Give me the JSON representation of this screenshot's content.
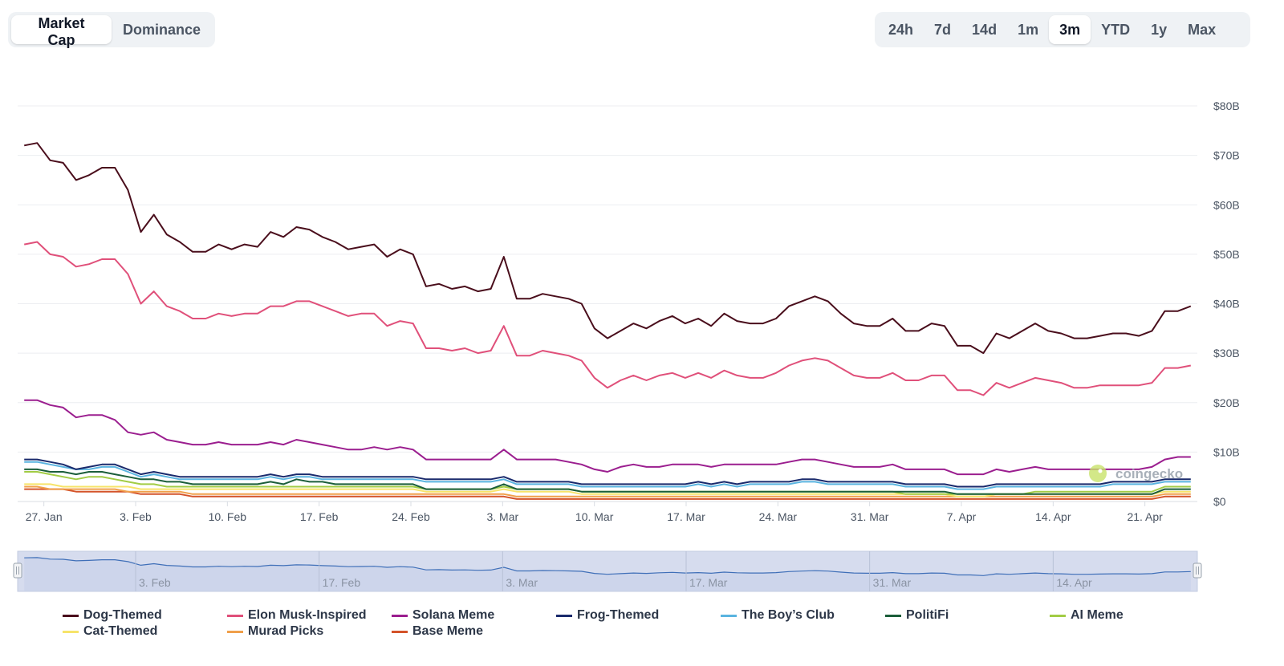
{
  "view_tabs": {
    "items": [
      {
        "label": "Market Cap",
        "active": true
      },
      {
        "label": "Dominance",
        "active": false
      }
    ]
  },
  "range_tabs": {
    "items": [
      {
        "label": "24h",
        "active": false
      },
      {
        "label": "7d",
        "active": false
      },
      {
        "label": "14d",
        "active": false
      },
      {
        "label": "1m",
        "active": false
      },
      {
        "label": "3m",
        "active": true
      },
      {
        "label": "YTD",
        "active": false
      },
      {
        "label": "1y",
        "active": false
      },
      {
        "label": "Max",
        "active": false
      }
    ]
  },
  "watermark": "coingecko",
  "chart_data": {
    "type": "line",
    "title": "",
    "xlabel": "",
    "ylabel": "",
    "ylim": [
      0,
      80
    ],
    "y_unit": "B",
    "y_ticks": [
      "$0",
      "$10B",
      "$20B",
      "$30B",
      "$40B",
      "$50B",
      "$60B",
      "$70B",
      "$80B"
    ],
    "x_ticks": [
      "27. Jan",
      "3. Feb",
      "10. Feb",
      "17. Feb",
      "24. Feb",
      "3. Mar",
      "10. Mar",
      "17. Mar",
      "24. Mar",
      "31. Mar",
      "7. Apr",
      "14. Apr",
      "21. Apr"
    ],
    "x_tick_days": [
      0,
      7,
      14,
      21,
      28,
      35,
      42,
      49,
      56,
      63,
      70,
      77,
      84
    ],
    "x_range_days": [
      -2,
      88
    ],
    "navigator_ticks": [
      "3. Feb",
      "17. Feb",
      "3. Mar",
      "17. Mar",
      "31. Mar",
      "14. Apr"
    ],
    "grid": true,
    "legend_position": "bottom",
    "series": [
      {
        "name": "Dog-Themed",
        "color": "#4a0e1c",
        "values": [
          72,
          72.5,
          69,
          68.5,
          65,
          66,
          67.5,
          67.5,
          63,
          54.5,
          58,
          54,
          52.5,
          50.5,
          50.5,
          52,
          51,
          52,
          51.5,
          54.5,
          53.5,
          55.5,
          55,
          53.5,
          52.5,
          51,
          51.5,
          52,
          49.5,
          51,
          50,
          43.5,
          44,
          43,
          43.5,
          42.5,
          43,
          49.5,
          41,
          41,
          42,
          41.5,
          41,
          40,
          35,
          33,
          34.5,
          36,
          35,
          36.5,
          37.5,
          36,
          37,
          35.5,
          38,
          36.5,
          36,
          36,
          37,
          39.5,
          40.5,
          41.5,
          40.5,
          38,
          36,
          35.5,
          35.5,
          37,
          34.5,
          34.5,
          36,
          35.5,
          31.5,
          31.5,
          30,
          34,
          33,
          34.5,
          36,
          34.5,
          34,
          33,
          33,
          33.5,
          34,
          34,
          33.5,
          34.5,
          38.5,
          38.5,
          39.5
        ]
      },
      {
        "name": "Elon Musk-Inspired",
        "color": "#e0507a",
        "values": [
          52,
          52.5,
          50,
          49.5,
          47.5,
          48,
          49,
          49,
          46,
          40,
          42.5,
          39.5,
          38.5,
          37,
          37,
          38,
          37.5,
          38,
          38,
          39.5,
          39.5,
          40.5,
          40.5,
          39.5,
          38.5,
          37.5,
          38,
          38,
          35.5,
          36.5,
          36,
          31,
          31,
          30.5,
          31,
          30,
          30.5,
          35.5,
          29.5,
          29.5,
          30.5,
          30,
          29.5,
          28.5,
          25,
          23,
          24.5,
          25.5,
          24.5,
          25.5,
          26,
          25,
          26,
          25,
          26.5,
          25.5,
          25,
          25,
          26,
          27.5,
          28.5,
          29,
          28.5,
          27,
          25.5,
          25,
          25,
          26,
          24.5,
          24.5,
          25.5,
          25.5,
          22.5,
          22.5,
          21.5,
          24,
          23,
          24,
          25,
          24.5,
          24,
          23,
          23,
          23.5,
          23.5,
          23.5,
          23.5,
          24,
          27,
          27,
          27.5
        ]
      },
      {
        "name": "Solana Meme",
        "color": "#9b1e8f",
        "values": [
          20.5,
          20.5,
          19.5,
          19,
          17,
          17.5,
          17.5,
          16.5,
          14,
          13.5,
          14,
          12.5,
          12,
          11.5,
          11.5,
          12,
          11.5,
          11.5,
          11.5,
          12,
          11.5,
          12.5,
          12,
          11.5,
          11,
          10.5,
          10.5,
          11,
          10.5,
          11,
          10.5,
          8.5,
          8.5,
          8.5,
          8.5,
          8.5,
          8.5,
          10.5,
          8.5,
          8.5,
          8.5,
          8.5,
          8,
          7.5,
          6.5,
          6,
          7,
          7.5,
          7,
          7,
          7.5,
          7.5,
          7.5,
          7,
          7.5,
          7.5,
          7.5,
          7.5,
          7.5,
          8,
          8.5,
          8.5,
          8,
          7.5,
          7,
          7,
          7,
          7.5,
          6.5,
          6.5,
          6.5,
          6.5,
          5.5,
          5.5,
          5.5,
          6.5,
          6,
          6.5,
          7,
          6.5,
          6.5,
          6.5,
          6.5,
          6.5,
          6.5,
          6.5,
          6.5,
          7,
          8.5,
          9,
          9
        ]
      },
      {
        "name": "Frog-Themed",
        "color": "#1a2a6c",
        "values": [
          8.5,
          8.5,
          8,
          7.5,
          6.5,
          7,
          7.5,
          7.5,
          6.5,
          5.5,
          6,
          5.5,
          5,
          5,
          5,
          5,
          5,
          5,
          5,
          5.5,
          5,
          5.5,
          5.5,
          5,
          5,
          5,
          5,
          5,
          5,
          5,
          5,
          4.5,
          4.5,
          4.5,
          4.5,
          4.5,
          4.5,
          5,
          4,
          4,
          4,
          4,
          4,
          3.5,
          3.5,
          3.5,
          3.5,
          3.5,
          3.5,
          3.5,
          3.5,
          3.5,
          4,
          3.5,
          4,
          3.5,
          4,
          4,
          4,
          4,
          4.5,
          4.5,
          4,
          4,
          4,
          4,
          4,
          4,
          3.5,
          3.5,
          3.5,
          3.5,
          3,
          3,
          3,
          3.5,
          3.5,
          3.5,
          3.5,
          3.5,
          3.5,
          3.5,
          3.5,
          3.5,
          4,
          4,
          4,
          4,
          4.5,
          4.5,
          4.5
        ]
      },
      {
        "name": "The Boy’s Club",
        "color": "#5ab4e0",
        "values": [
          8,
          8,
          7.5,
          7,
          6.5,
          6.5,
          7,
          7,
          6,
          5,
          5.5,
          5,
          4.5,
          4.5,
          4.5,
          4.5,
          4.5,
          4.5,
          4.5,
          5,
          4.5,
          5,
          5,
          4.5,
          4.5,
          4.5,
          4.5,
          4.5,
          4.5,
          4.5,
          4.5,
          4,
          4,
          4,
          4,
          4,
          4,
          4.5,
          3.5,
          3.5,
          3.5,
          3.5,
          3.5,
          3,
          3,
          3,
          3,
          3,
          3,
          3,
          3,
          3,
          3.5,
          3,
          3.5,
          3,
          3.5,
          3.5,
          3.5,
          3.5,
          4,
          4,
          3.5,
          3.5,
          3.5,
          3.5,
          3.5,
          3.5,
          3,
          3,
          3,
          3,
          2.5,
          2.5,
          2.5,
          3,
          3,
          3,
          3,
          3,
          3,
          3,
          3,
          3,
          3.5,
          3.5,
          3.5,
          3.5,
          4,
          4,
          4
        ]
      },
      {
        "name": "PolitiFi",
        "color": "#1b5e3a",
        "values": [
          6.5,
          6.5,
          6,
          6,
          5.5,
          6,
          6,
          5.5,
          5,
          4.5,
          4.5,
          4,
          4,
          3.5,
          3.5,
          3.5,
          3.5,
          3.5,
          3.5,
          4,
          3.5,
          4.5,
          4,
          4,
          3.5,
          3.5,
          3.5,
          3.5,
          3.5,
          3.5,
          3.5,
          2.5,
          2.5,
          2.5,
          2.5,
          2.5,
          2.5,
          3.5,
          2.5,
          2.5,
          2.5,
          2.5,
          2.5,
          2,
          2,
          2,
          2,
          2,
          2,
          2,
          2,
          2,
          2,
          2,
          2,
          2,
          2,
          2,
          2,
          2,
          2,
          2,
          2,
          2,
          2,
          2,
          2,
          2,
          2,
          2,
          2,
          2,
          1.5,
          1.5,
          1.5,
          1.5,
          1.5,
          1.5,
          1.5,
          1.5,
          1.5,
          1.5,
          1.5,
          1.5,
          1.5,
          1.5,
          1.5,
          1.5,
          2.5,
          2.5,
          2.5
        ]
      },
      {
        "name": "AI Meme",
        "color": "#a2cc45",
        "values": [
          6,
          6,
          5.5,
          5,
          4.5,
          5,
          5,
          4.5,
          4,
          3.5,
          3.5,
          3,
          3,
          3,
          3,
          3,
          3,
          3,
          3,
          3,
          3,
          3,
          3,
          3,
          3,
          3,
          3,
          3,
          3,
          3,
          3,
          2.5,
          2.5,
          2.5,
          2.5,
          2.5,
          2.5,
          3,
          2.5,
          2.5,
          2.5,
          2.5,
          2.5,
          2,
          2,
          2,
          2,
          2,
          2,
          2,
          2,
          2,
          2,
          2,
          2,
          2,
          2,
          2,
          2,
          2,
          2,
          2,
          2,
          2,
          2,
          2,
          2,
          2,
          1.5,
          1.5,
          1.5,
          1.5,
          1.5,
          1.5,
          1.5,
          1.5,
          1.5,
          1.5,
          2,
          2,
          2,
          2,
          2,
          2,
          2,
          2,
          2,
          2,
          3,
          3,
          3
        ]
      },
      {
        "name": "Cat-Themed",
        "color": "#f7e46a",
        "values": [
          3.5,
          3.5,
          3.5,
          3,
          3,
          3,
          3,
          3,
          3,
          2.5,
          2.5,
          2.5,
          2.5,
          2.5,
          2.5,
          2.5,
          2.5,
          2.5,
          2.5,
          2.5,
          2.5,
          2.5,
          2.5,
          2.5,
          2.5,
          2.5,
          2.5,
          2.5,
          2.5,
          2.5,
          2.5,
          2,
          2,
          2,
          2,
          2,
          2,
          2.5,
          2,
          2,
          2,
          2,
          2,
          1.5,
          1.5,
          1.5,
          1.5,
          1.5,
          1.5,
          1.5,
          1.5,
          1.5,
          1.5,
          1.5,
          1.5,
          1.5,
          1.5,
          1.5,
          1.5,
          1.5,
          1.5,
          1.5,
          1.5,
          1.5,
          1.5,
          1.5,
          1.5,
          1.5,
          1.5,
          1.5,
          1.5,
          1.5,
          1,
          1,
          1,
          1.5,
          1.5,
          1.5,
          1.5,
          1.5,
          1.5,
          1.5,
          1.5,
          1.5,
          1.5,
          1.5,
          1.5,
          1.5,
          2,
          2,
          2
        ]
      },
      {
        "name": "Murad Picks",
        "color": "#f0a04b",
        "values": [
          3,
          3,
          2.5,
          2.5,
          2.5,
          2.5,
          2.5,
          2.5,
          2,
          2,
          2,
          2,
          2,
          1.5,
          1.5,
          1.5,
          1.5,
          1.5,
          1.5,
          1.5,
          1.5,
          1.5,
          1.5,
          1.5,
          1.5,
          1.5,
          1.5,
          1.5,
          1.5,
          1.5,
          1.5,
          1.5,
          1.5,
          1.5,
          1.5,
          1.5,
          1.5,
          1.5,
          1,
          1,
          1,
          1,
          1,
          1,
          1,
          1,
          1,
          1,
          1,
          1,
          1,
          1,
          1,
          1,
          1,
          1,
          1,
          1,
          1,
          1,
          1,
          1,
          1,
          1,
          1,
          1,
          1,
          1,
          1,
          1,
          1,
          1,
          1,
          1,
          1,
          1,
          1,
          1,
          1,
          1,
          1,
          1,
          1,
          1,
          1,
          1,
          1,
          1,
          1.5,
          1.5,
          1.5
        ]
      },
      {
        "name": "Base Meme",
        "color": "#d4532a",
        "values": [
          2.5,
          2.5,
          2.5,
          2.5,
          2,
          2,
          2,
          2,
          2,
          1.5,
          1.5,
          1.5,
          1.5,
          1,
          1,
          1,
          1,
          1,
          1,
          1,
          1,
          1,
          1,
          1,
          1,
          1,
          1,
          1,
          1,
          1,
          1,
          1,
          1,
          1,
          1,
          1,
          1,
          1,
          0.5,
          0.5,
          0.5,
          0.5,
          0.5,
          0.5,
          0.5,
          0.5,
          0.5,
          0.5,
          0.5,
          0.5,
          0.5,
          0.5,
          0.5,
          0.5,
          0.5,
          0.5,
          0.5,
          0.5,
          0.5,
          0.5,
          0.5,
          0.5,
          0.5,
          0.5,
          0.5,
          0.5,
          0.5,
          0.5,
          0.5,
          0.5,
          0.5,
          0.5,
          0.5,
          0.5,
          0.5,
          0.5,
          0.5,
          0.5,
          0.5,
          0.5,
          0.5,
          0.5,
          0.5,
          0.5,
          0.5,
          0.5,
          0.5,
          0.5,
          1,
          1,
          1
        ]
      }
    ]
  }
}
